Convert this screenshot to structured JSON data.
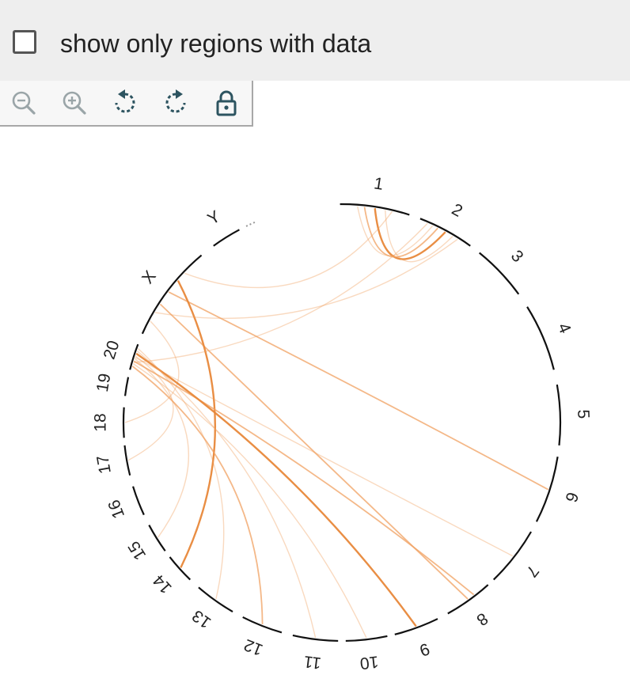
{
  "filter": {
    "label": "show only regions with data",
    "checked": false
  },
  "toolbar": {
    "buttons": [
      {
        "name": "zoom-out-button",
        "icon": "zoom-out-icon",
        "enabled": false
      },
      {
        "name": "zoom-in-button",
        "icon": "zoom-in-icon",
        "enabled": false
      },
      {
        "name": "rotate-left-button",
        "icon": "rotate-left-icon",
        "enabled": true
      },
      {
        "name": "rotate-right-button",
        "icon": "rotate-right-icon",
        "enabled": true
      },
      {
        "name": "lock-button",
        "icon": "lock-icon",
        "enabled": true
      }
    ]
  },
  "colors": {
    "link": "#f0a060",
    "link_strong": "#e8883a",
    "ideogram": "#111111",
    "icon": "#2d5460",
    "icon_disabled": "#9aa5a8"
  },
  "chromosomes": [
    "1",
    "2",
    "3",
    "4",
    "5",
    "6",
    "7",
    "8",
    "9",
    "10",
    "11",
    "12",
    "13",
    "14",
    "15",
    "16",
    "17",
    "18",
    "19",
    "20",
    "X",
    "Y"
  ],
  "links": [
    {
      "from": "1",
      "to": "2",
      "strength": "strong"
    },
    {
      "from": "1",
      "to": "2",
      "strength": "medium"
    },
    {
      "from": "1",
      "to": "2",
      "strength": "weak"
    },
    {
      "from": "1",
      "to": "2",
      "strength": "weak"
    },
    {
      "from": "X",
      "to": "6",
      "strength": "medium"
    },
    {
      "from": "X",
      "to": "8",
      "strength": "medium"
    },
    {
      "from": "X",
      "to": "14",
      "strength": "strong"
    },
    {
      "from": "X",
      "to": "2",
      "strength": "weak"
    },
    {
      "from": "X",
      "to": "1",
      "strength": "weak"
    },
    {
      "from": "X",
      "to": "18",
      "strength": "weak"
    },
    {
      "from": "20",
      "to": "7",
      "strength": "weak"
    },
    {
      "from": "20",
      "to": "8",
      "strength": "medium"
    },
    {
      "from": "20",
      "to": "9",
      "strength": "strong"
    },
    {
      "from": "20",
      "to": "10",
      "strength": "weak"
    },
    {
      "from": "20",
      "to": "11",
      "strength": "weak"
    },
    {
      "from": "20",
      "to": "12",
      "strength": "medium"
    },
    {
      "from": "20",
      "to": "13",
      "strength": "weak"
    },
    {
      "from": "20",
      "to": "15",
      "strength": "weak"
    },
    {
      "from": "20",
      "to": "17",
      "strength": "weak"
    },
    {
      "from": "20",
      "to": "2",
      "strength": "weak"
    }
  ]
}
